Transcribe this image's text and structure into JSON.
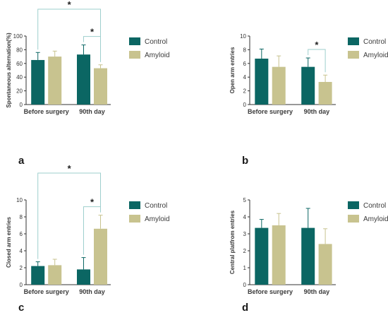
{
  "colors": {
    "control": "#0b6663",
    "amyloid": "#c8c38f",
    "bracket": "#9ecfcd",
    "axis": "#333333"
  },
  "chart_data": [
    {
      "panel_label": "a",
      "type": "bar",
      "categories": [
        "Before surgery",
        "90th day"
      ],
      "ylabel": "Spontaneous alternation(%)",
      "ylim": [
        0,
        100
      ],
      "yticks": [
        0,
        20,
        40,
        60,
        80,
        100
      ],
      "series": [
        {
          "name": "Control",
          "values": [
            65,
            73
          ],
          "errors": [
            11,
            14
          ]
        },
        {
          "name": "Amyloid",
          "values": [
            70,
            53
          ],
          "errors": [
            8,
            5
          ]
        }
      ],
      "significance": [
        {
          "from": "Control, Before surgery",
          "to": "Amyloid, 90th day",
          "label": "*"
        },
        {
          "from": "Control, 90th day",
          "to": "Amyloid, 90th day",
          "label": "*"
        }
      ]
    },
    {
      "panel_label": "b",
      "type": "bar",
      "categories": [
        "Before surgery",
        "90th day"
      ],
      "ylabel": "Open arm entries",
      "ylim": [
        0,
        10
      ],
      "yticks": [
        0,
        2,
        4,
        6,
        8,
        10
      ],
      "series": [
        {
          "name": "Control",
          "values": [
            6.7,
            5.5
          ],
          "errors": [
            1.4,
            1.3
          ]
        },
        {
          "name": "Amyloid",
          "values": [
            5.5,
            3.3
          ],
          "errors": [
            1.6,
            1.0
          ]
        }
      ],
      "significance": [
        {
          "from": "Control, 90th day",
          "to": "Amyloid, 90th day",
          "label": "*"
        }
      ]
    },
    {
      "panel_label": "c",
      "type": "bar",
      "categories": [
        "Before surgery",
        "90th day"
      ],
      "ylabel": "Closed arm entries",
      "ylim": [
        0,
        10
      ],
      "yticks": [
        0,
        2,
        4,
        6,
        8,
        10
      ],
      "series": [
        {
          "name": "Control",
          "values": [
            2.2,
            1.8
          ],
          "errors": [
            0.5,
            1.4
          ]
        },
        {
          "name": "Amyloid",
          "values": [
            2.3,
            6.6
          ],
          "errors": [
            0.7,
            1.6
          ]
        }
      ],
      "significance": [
        {
          "from": "Control, Before surgery",
          "to": "Amyloid, 90th day",
          "label": "*"
        },
        {
          "from": "Control, 90th day",
          "to": "Amyloid, 90th day",
          "label": "*"
        }
      ]
    },
    {
      "panel_label": "d",
      "type": "bar",
      "categories": [
        "Before surgery",
        "90th day"
      ],
      "ylabel": "Central platfrom entries",
      "ylim": [
        0,
        5
      ],
      "yticks": [
        0,
        1,
        2,
        3,
        4,
        5
      ],
      "series": [
        {
          "name": "Control",
          "values": [
            3.35,
            3.35
          ],
          "errors": [
            0.5,
            1.15
          ]
        },
        {
          "name": "Amyloid",
          "values": [
            3.5,
            2.4
          ],
          "errors": [
            0.7,
            0.9
          ]
        }
      ],
      "significance": []
    }
  ]
}
